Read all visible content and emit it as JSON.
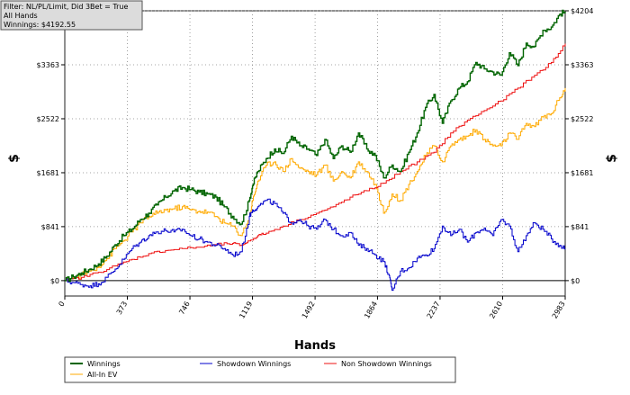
{
  "info_box": {
    "line1": "Filter: NL/PL/Limit, Did 3Bet = True",
    "line2": "All Hands",
    "line3": "Winnings: $4192.55"
  },
  "colors": {
    "winnings": "#006400",
    "showdown": "#0000cc",
    "non_showdown": "#ee1111",
    "allin": "#ffaa00",
    "background": "#ffffff"
  },
  "chart_data": {
    "type": "line",
    "xlabel": "Hands",
    "ylabel": "$",
    "xlim": [
      0,
      2983
    ],
    "ylim": [
      -240,
      4204
    ],
    "x_ticks": [
      0,
      373,
      746,
      1119,
      1492,
      1864,
      2237,
      2610,
      2983
    ],
    "y_ticks": [
      {
        "value": 0,
        "label": "$0"
      },
      {
        "value": 841,
        "label": "$841"
      },
      {
        "value": 1681,
        "label": "$1681"
      },
      {
        "value": 2522,
        "label": "$2522"
      },
      {
        "value": 3363,
        "label": "$3363"
      },
      {
        "value": 4204,
        "label": "$4204"
      }
    ],
    "grid": true,
    "legend_position": "bottom",
    "series": [
      {
        "name": "Winnings",
        "x": [
          0,
          50,
          100,
          150,
          200,
          250,
          300,
          350,
          400,
          450,
          500,
          550,
          600,
          650,
          700,
          750,
          800,
          850,
          900,
          950,
          1000,
          1050,
          1100,
          1119,
          1150,
          1200,
          1250,
          1300,
          1350,
          1400,
          1450,
          1500,
          1550,
          1600,
          1650,
          1700,
          1750,
          1800,
          1850,
          1900,
          1950,
          2000,
          2050,
          2100,
          2150,
          2200,
          2250,
          2300,
          2350,
          2400,
          2450,
          2500,
          2550,
          2600,
          2650,
          2700,
          2750,
          2800,
          2850,
          2900,
          2950,
          2983
        ],
        "y": [
          0,
          60,
          120,
          180,
          260,
          380,
          560,
          700,
          800,
          950,
          1050,
          1180,
          1300,
          1400,
          1450,
          1420,
          1380,
          1350,
          1300,
          1150,
          1000,
          880,
          1250,
          1480,
          1700,
          1900,
          2050,
          1980,
          2250,
          2100,
          2050,
          1950,
          2200,
          1900,
          2100,
          2000,
          2300,
          2050,
          1950,
          1600,
          1800,
          1700,
          2000,
          2300,
          2700,
          2900,
          2450,
          2800,
          3000,
          3100,
          3400,
          3300,
          3250,
          3200,
          3550,
          3350,
          3700,
          3650,
          3900,
          3950,
          4150,
          4192
        ]
      },
      {
        "name": "Showdown Winnings",
        "x": [
          0,
          50,
          100,
          150,
          200,
          250,
          300,
          350,
          400,
          450,
          500,
          550,
          600,
          650,
          700,
          750,
          800,
          850,
          900,
          950,
          1000,
          1050,
          1100,
          1119,
          1150,
          1200,
          1250,
          1300,
          1350,
          1400,
          1450,
          1500,
          1550,
          1600,
          1650,
          1700,
          1750,
          1800,
          1850,
          1900,
          1930,
          1950,
          2000,
          2050,
          2100,
          2150,
          2200,
          2250,
          2300,
          2350,
          2400,
          2450,
          2500,
          2550,
          2600,
          2650,
          2700,
          2750,
          2800,
          2850,
          2900,
          2950,
          2983
        ],
        "y": [
          0,
          -30,
          -60,
          -80,
          -50,
          50,
          180,
          330,
          500,
          600,
          700,
          760,
          780,
          760,
          800,
          700,
          650,
          600,
          550,
          500,
          400,
          450,
          1000,
          1100,
          1150,
          1250,
          1200,
          1050,
          900,
          950,
          850,
          800,
          950,
          800,
          700,
          750,
          550,
          500,
          400,
          300,
          100,
          -150,
          150,
          200,
          350,
          400,
          500,
          850,
          700,
          800,
          600,
          750,
          820,
          700,
          950,
          850,
          450,
          700,
          900,
          800,
          650,
          550,
          500
        ]
      },
      {
        "name": "Non Showdown Winnings",
        "x": [
          0,
          100,
          200,
          300,
          400,
          500,
          600,
          700,
          800,
          900,
          1000,
          1050,
          1100,
          1150,
          1200,
          1300,
          1400,
          1500,
          1600,
          1700,
          1800,
          1900,
          2000,
          2100,
          2200,
          2300,
          2400,
          2500,
          2600,
          2700,
          2800,
          2900,
          2983
        ],
        "y": [
          0,
          50,
          130,
          230,
          330,
          420,
          470,
          500,
          520,
          560,
          580,
          550,
          620,
          700,
          740,
          850,
          950,
          1050,
          1150,
          1300,
          1400,
          1520,
          1700,
          1850,
          2000,
          2300,
          2500,
          2650,
          2800,
          3000,
          3200,
          3400,
          3692
        ]
      },
      {
        "name": "All-In EV",
        "x": [
          0,
          50,
          100,
          150,
          200,
          250,
          300,
          350,
          400,
          450,
          500,
          550,
          600,
          650,
          700,
          750,
          800,
          850,
          900,
          950,
          1000,
          1050,
          1100,
          1119,
          1150,
          1200,
          1250,
          1300,
          1350,
          1400,
          1450,
          1500,
          1550,
          1600,
          1650,
          1700,
          1750,
          1800,
          1850,
          1900,
          1950,
          2000,
          2050,
          2100,
          2150,
          2200,
          2250,
          2300,
          2350,
          2400,
          2450,
          2500,
          2550,
          2600,
          2650,
          2700,
          2750,
          2800,
          2850,
          2900,
          2950,
          2983
        ],
        "y": [
          0,
          40,
          90,
          150,
          220,
          340,
          500,
          620,
          760,
          900,
          1000,
          1050,
          1100,
          1120,
          1150,
          1100,
          1080,
          1070,
          1000,
          900,
          850,
          700,
          1000,
          1250,
          1550,
          1800,
          1850,
          1700,
          1900,
          1750,
          1700,
          1650,
          1800,
          1550,
          1700,
          1600,
          1850,
          1700,
          1500,
          1050,
          1350,
          1250,
          1500,
          1700,
          1950,
          2100,
          1850,
          2100,
          2200,
          2250,
          2350,
          2200,
          2100,
          2100,
          2300,
          2200,
          2450,
          2400,
          2550,
          2600,
          2850,
          3000
        ]
      }
    ]
  }
}
